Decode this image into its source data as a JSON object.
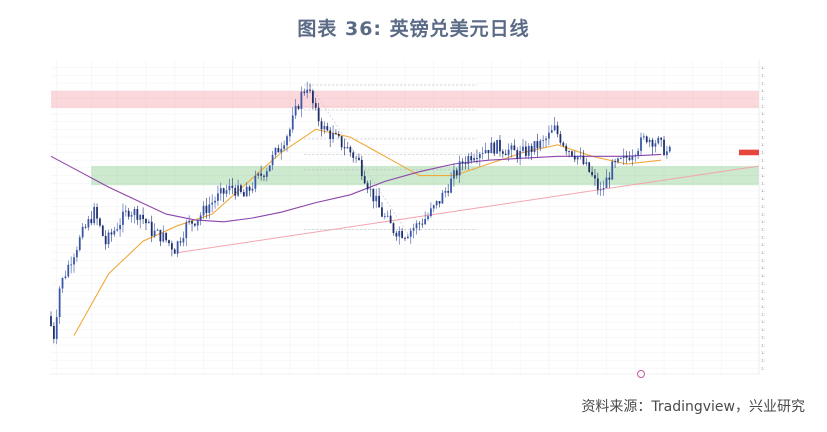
{
  "page": {
    "title": "图表 36: 英镑兑美元日线",
    "source": "资料来源：Tradingview，兴业研究"
  },
  "chart_data": {
    "type": "candlestick",
    "title": "",
    "legend_lines": [
      "",
      "",
      ""
    ],
    "y_range": [
      1.195,
      1.358
    ],
    "x_range": [
      0,
      246
    ],
    "price_tag": "",
    "x_ticks": [
      {
        "i": 2,
        "label": ""
      },
      {
        "i": 14,
        "label": ""
      },
      {
        "i": 23,
        "label": ""
      },
      {
        "i": 33,
        "label": ""
      },
      {
        "i": 43,
        "label": ""
      },
      {
        "i": 53,
        "label": ""
      },
      {
        "i": 63,
        "label": ""
      },
      {
        "i": 73,
        "label": ""
      },
      {
        "i": 83,
        "label": ""
      },
      {
        "i": 93,
        "label": ""
      },
      {
        "i": 103,
        "label": ""
      },
      {
        "i": 113,
        "label": ""
      },
      {
        "i": 123,
        "label": ""
      },
      {
        "i": 133,
        "label": ""
      },
      {
        "i": 143,
        "label": ""
      },
      {
        "i": 153,
        "label": ""
      },
      {
        "i": 163,
        "label": ""
      },
      {
        "i": 173,
        "label": ""
      },
      {
        "i": 183,
        "label": ""
      },
      {
        "i": 193,
        "label": ""
      },
      {
        "i": 203,
        "label": ""
      },
      {
        "i": 213,
        "label": ""
      },
      {
        "i": 223,
        "label": ""
      },
      {
        "i": 233,
        "label": ""
      }
    ],
    "y_ticks": [
      1.354,
      1.35,
      1.346,
      1.342,
      1.338,
      1.334,
      1.33,
      1.326,
      1.322,
      1.318,
      1.314,
      1.31,
      1.306,
      1.302,
      1.298,
      1.294,
      1.29,
      1.286,
      1.282,
      1.278,
      1.274,
      1.27,
      1.266,
      1.262,
      1.258,
      1.254,
      1.25,
      1.246,
      1.242,
      1.238,
      1.234,
      1.23,
      1.226,
      1.222,
      1.218,
      1.214,
      1.21,
      1.206,
      1.202,
      1.198
    ],
    "keypoints": [
      [
        0,
        1.225
      ],
      [
        2,
        1.215
      ],
      [
        4,
        1.24
      ],
      [
        8,
        1.255
      ],
      [
        12,
        1.268
      ],
      [
        16,
        1.279
      ],
      [
        20,
        1.263
      ],
      [
        24,
        1.272
      ],
      [
        28,
        1.28
      ],
      [
        32,
        1.278
      ],
      [
        36,
        1.269
      ],
      [
        40,
        1.266
      ],
      [
        44,
        1.26
      ],
      [
        48,
        1.272
      ],
      [
        52,
        1.276
      ],
      [
        56,
        1.283
      ],
      [
        60,
        1.288
      ],
      [
        64,
        1.292
      ],
      [
        68,
        1.287
      ],
      [
        72,
        1.295
      ],
      [
        76,
        1.302
      ],
      [
        80,
        1.312
      ],
      [
        84,
        1.322
      ],
      [
        88,
        1.34
      ],
      [
        90,
        1.345
      ],
      [
        93,
        1.33
      ],
      [
        96,
        1.322
      ],
      [
        100,
        1.317
      ],
      [
        104,
        1.312
      ],
      [
        108,
        1.305
      ],
      [
        112,
        1.29
      ],
      [
        116,
        1.278
      ],
      [
        120,
        1.27
      ],
      [
        124,
        1.268
      ],
      [
        128,
        1.272
      ],
      [
        132,
        1.277
      ],
      [
        136,
        1.285
      ],
      [
        140,
        1.295
      ],
      [
        144,
        1.305
      ],
      [
        148,
        1.31
      ],
      [
        152,
        1.312
      ],
      [
        156,
        1.313
      ],
      [
        160,
        1.311
      ],
      [
        164,
        1.309
      ],
      [
        168,
        1.312
      ],
      [
        172,
        1.315
      ],
      [
        176,
        1.322
      ],
      [
        180,
        1.313
      ],
      [
        184,
        1.308
      ],
      [
        188,
        1.3
      ],
      [
        192,
        1.289
      ],
      [
        196,
        1.302
      ],
      [
        200,
        1.306
      ],
      [
        204,
        1.312
      ],
      [
        208,
        1.318
      ],
      [
        212,
        1.315
      ],
      [
        215,
        1.31
      ]
    ],
    "moving_averages": [
      {
        "name": "",
        "color": "#f2a93b",
        "points": [
          [
            8,
            1.215
          ],
          [
            20,
            1.247
          ],
          [
            32,
            1.264
          ],
          [
            44,
            1.272
          ],
          [
            56,
            1.278
          ],
          [
            68,
            1.294
          ],
          [
            80,
            1.31
          ],
          [
            92,
            1.322
          ],
          [
            104,
            1.318
          ],
          [
            116,
            1.308
          ],
          [
            128,
            1.298
          ],
          [
            140,
            1.298
          ],
          [
            152,
            1.304
          ],
          [
            164,
            1.31
          ],
          [
            176,
            1.314
          ],
          [
            188,
            1.308
          ],
          [
            200,
            1.304
          ],
          [
            212,
            1.306
          ]
        ]
      },
      {
        "name": "",
        "color": "#8e44ad",
        "points": [
          [
            0,
            1.308
          ],
          [
            10,
            1.3
          ],
          [
            20,
            1.292
          ],
          [
            30,
            1.285
          ],
          [
            40,
            1.278
          ],
          [
            50,
            1.275
          ],
          [
            60,
            1.274
          ],
          [
            70,
            1.276
          ],
          [
            80,
            1.279
          ],
          [
            92,
            1.284
          ],
          [
            104,
            1.288
          ],
          [
            116,
            1.295
          ],
          [
            128,
            1.3
          ],
          [
            140,
            1.304
          ],
          [
            152,
            1.306
          ],
          [
            164,
            1.307
          ],
          [
            176,
            1.308
          ],
          [
            188,
            1.308
          ],
          [
            200,
            1.308
          ],
          [
            212,
            1.309
          ]
        ]
      }
    ],
    "zones": [
      {
        "y0": 1.333,
        "y1": 1.342,
        "color": "rgba(244,143,152,0.35)",
        "i0": 0,
        "i1": 246
      },
      {
        "y0": 1.293,
        "y1": 1.303,
        "color": "rgba(76,175,80,0.28)",
        "i0": 14,
        "i1": 246
      }
    ],
    "trendline": {
      "i0": 44,
      "y0": 1.258,
      "i1": 246,
      "y1": 1.303,
      "color": "#f4a6b0"
    },
    "fib_levels": [
      {
        "y": 1.345,
        "label": ""
      },
      {
        "y": 1.332,
        "label": ""
      },
      {
        "y": 1.317,
        "label": ""
      },
      {
        "y": 1.309,
        "label": ""
      },
      {
        "y": 1.301,
        "label": ""
      },
      {
        "y": 1.27,
        "label": ""
      }
    ]
  }
}
